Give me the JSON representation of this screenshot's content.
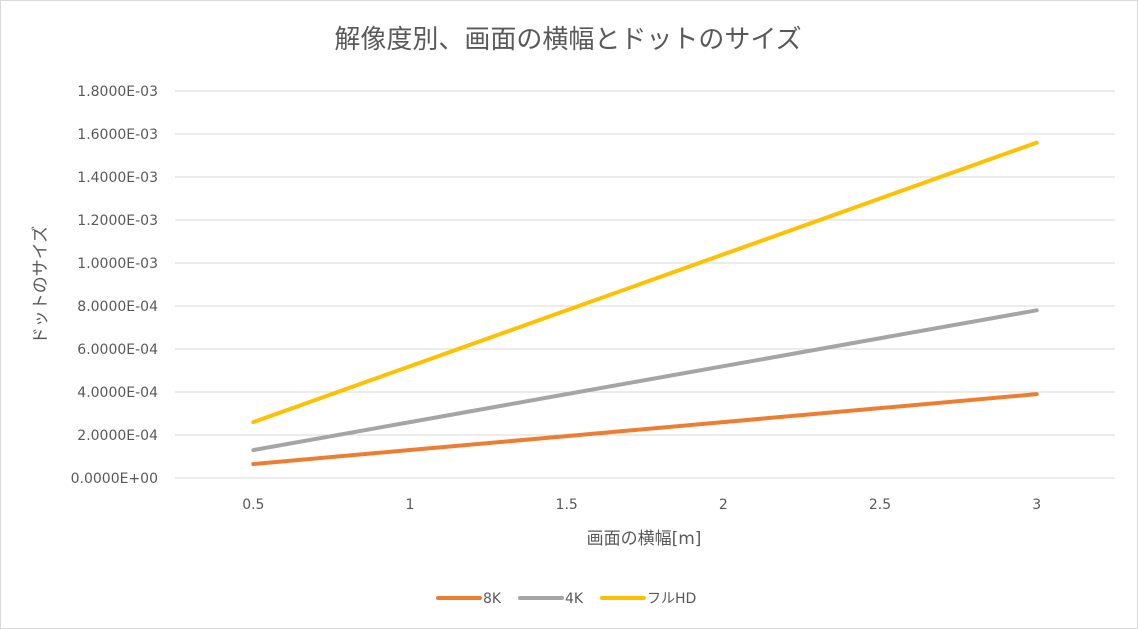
{
  "chart_data": {
    "type": "line",
    "title": "解像度別、画面の横幅とドットのサイズ",
    "xlabel": "画面の横幅[m]",
    "ylabel": "ドットのサイズ",
    "x": [
      0.5,
      1,
      1.5,
      2,
      2.5,
      3
    ],
    "x_tick_labels": [
      "0.5",
      "1",
      "1.5",
      "2",
      "2.5",
      "3"
    ],
    "ylim": [
      0,
      0.0018
    ],
    "y_ticks": [
      0,
      0.0002,
      0.0004,
      0.0006,
      0.0008,
      0.001,
      0.0012,
      0.0014,
      0.0016,
      0.0018
    ],
    "y_tick_labels": [
      "0.0000E+00",
      "2.0000E-04",
      "4.0000E-04",
      "6.0000E-04",
      "8.0000E-04",
      "1.0000E-03",
      "1.2000E-03",
      "1.4000E-03",
      "1.6000E-03",
      "1.8000E-03"
    ],
    "grid": true,
    "legend_position": "bottom",
    "series": [
      {
        "name": "8K",
        "color": "#ED7D31",
        "values": [
          6.5e-05,
          0.00013,
          0.000195,
          0.00026,
          0.000325,
          0.00039
        ]
      },
      {
        "name": "4K",
        "color": "#A5A5A5",
        "values": [
          0.00013,
          0.00026,
          0.00039,
          0.00052,
          0.00065,
          0.00078
        ]
      },
      {
        "name": "フルHD",
        "color": "#FFC000",
        "values": [
          0.00026,
          0.00052,
          0.00078,
          0.00104,
          0.0013,
          0.00156
        ]
      }
    ]
  }
}
